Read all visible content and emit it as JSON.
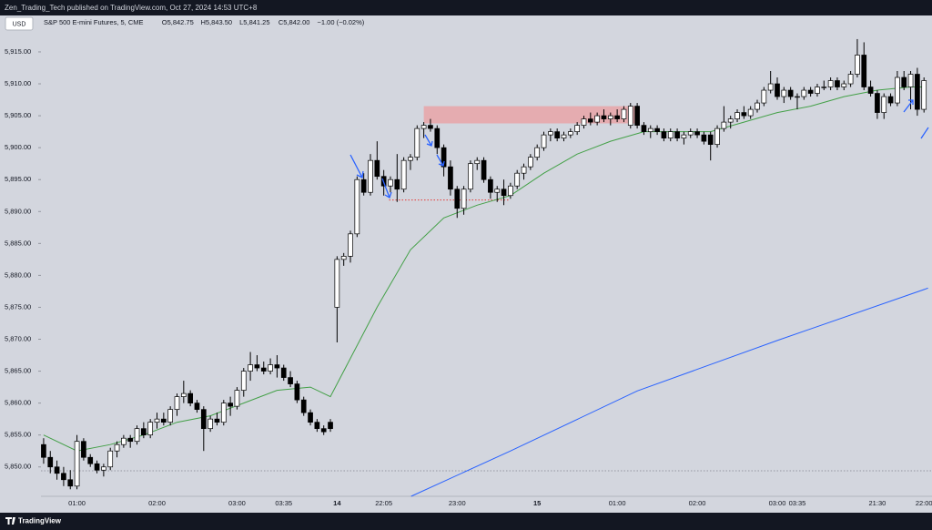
{
  "header": {
    "published": "Zen_Trading_Tech published on TradingView.com, Oct 27, 2024 14:53 UTC+8",
    "currency": "USD",
    "footer": "TradingView"
  },
  "chart_data": {
    "type": "candlestick",
    "title": "S&P 500 E-mini Futures, 5, CME",
    "legend_values": [
      "O5,842.75",
      "H5,843.50",
      "L5,841.25",
      "C5,842.00",
      "−1.00 (−0.02%)"
    ],
    "up_color": "#ffffff",
    "down_color": "#000000",
    "categories": [
      null,
      null,
      null,
      null,
      null,
      "01:00",
      null,
      null,
      null,
      null,
      null,
      null,
      null,
      null,
      null,
      null,
      null,
      "02:00",
      null,
      null,
      null,
      null,
      null,
      null,
      null,
      null,
      null,
      null,
      null,
      "03:00",
      null,
      null,
      null,
      null,
      null,
      null,
      "03:35",
      null,
      null,
      null,
      null,
      null,
      null,
      null,
      "14",
      null,
      null,
      null,
      null,
      null,
      null,
      "22:05",
      null,
      null,
      null,
      null,
      null,
      null,
      null,
      null,
      null,
      null,
      "23:00",
      null,
      null,
      null,
      null,
      null,
      null,
      null,
      null,
      null,
      null,
      null,
      "15",
      null,
      null,
      null,
      null,
      null,
      null,
      null,
      null,
      null,
      null,
      null,
      "01:00",
      null,
      null,
      null,
      null,
      null,
      null,
      null,
      null,
      null,
      null,
      null,
      "02:00",
      null,
      null,
      null,
      null,
      null,
      null,
      null,
      null,
      null,
      null,
      null,
      "03:00",
      null,
      null,
      "03:35",
      null,
      null,
      null,
      null,
      null,
      null,
      null,
      null,
      null,
      null,
      null,
      "21:30",
      null,
      null,
      null,
      null,
      null,
      null,
      "22:00"
    ],
    "open": [
      5853.5,
      5851.5,
      5850,
      5849,
      5848,
      5847,
      5854,
      5851.5,
      5850.5,
      5849.5,
      5850,
      5852.5,
      5853.5,
      5854.5,
      5854,
      5856,
      5855,
      5857,
      5857.5,
      5857,
      5859,
      5861,
      5861.5,
      5860,
      5859,
      5856,
      5857.5,
      5857,
      5860,
      5859.5,
      5862,
      5865,
      5866,
      5865.5,
      5865,
      5866,
      5865.5,
      5864,
      5863,
      5860.5,
      5858.5,
      5857,
      5856,
      5857,
      5875,
      5882.5,
      5883,
      5886.5,
      5895,
      5893,
      5898,
      5895.5,
      5894,
      5895,
      5893.5,
      5898,
      5898.5,
      5903,
      5903.5,
      5903,
      5900,
      5897,
      5893.5,
      5890.5,
      5893.5,
      5897.5,
      5898,
      5895,
      5893,
      5893.5,
      5892.5,
      5894,
      5896,
      5897,
      5898.5,
      5900,
      5902,
      5902.5,
      5901.5,
      5902,
      5902.5,
      5903.5,
      5904.5,
      5904,
      5905,
      5904.5,
      5905,
      5904.5,
      5903.5,
      5906.5,
      5903.5,
      5902.5,
      5903,
      5902.5,
      5901.5,
      5902.5,
      5901.5,
      5902,
      5902.5,
      5902,
      5902,
      5900.5,
      5903,
      5904,
      5904.5,
      5905.5,
      5905,
      5906,
      5907,
      5909,
      5910,
      5908,
      5909,
      5908,
      5908,
      5909,
      5908.5,
      5909.5,
      5909.5,
      5910.5,
      5909.5,
      5910,
      5911.5,
      5914.5,
      5909.5,
      5908.5,
      5905.5,
      5908,
      5907,
      5911,
      5909.5,
      5911.5,
      5906
    ],
    "high": [
      5854.5,
      5852.5,
      5851,
      5850,
      5849.5,
      5855,
      5854.5,
      5852,
      5851,
      5850.5,
      5853,
      5854,
      5855,
      5855,
      5856.5,
      5857,
      5857.5,
      5858.5,
      5858.5,
      5859.5,
      5861.5,
      5863.5,
      5862,
      5860.5,
      5859.5,
      5858,
      5858.5,
      5860.5,
      5861,
      5862.5,
      5865.5,
      5868,
      5867.5,
      5866.5,
      5867,
      5867.5,
      5866,
      5865,
      5863.5,
      5861,
      5859,
      5857.5,
      5856.5,
      5857.5,
      5883,
      5883.5,
      5887,
      5895.5,
      5896,
      5899,
      5901,
      5896.5,
      5895.5,
      5899,
      5898.5,
      5899,
      5903.5,
      5904,
      5904.5,
      5903.5,
      5900.5,
      5898,
      5894,
      5894,
      5898,
      5898.5,
      5898.5,
      5895.5,
      5894,
      5895,
      5894.5,
      5896.5,
      5897.5,
      5899,
      5900.5,
      5902.5,
      5903,
      5903,
      5902.5,
      5903,
      5904,
      5905,
      5905.5,
      5905.5,
      5906,
      5905.5,
      5906,
      5906.5,
      5907,
      5907,
      5904,
      5903.5,
      5903.5,
      5903,
      5903,
      5903,
      5902.5,
      5903,
      5903,
      5902.5,
      5902.5,
      5903.5,
      5906.5,
      5905,
      5906,
      5906.5,
      5906.5,
      5907.5,
      5909.5,
      5912,
      5911,
      5909.5,
      5909.5,
      5908.5,
      5909.5,
      5909.5,
      5910,
      5910.5,
      5911,
      5911,
      5910.5,
      5912,
      5917,
      5916.5,
      5910.5,
      5909,
      5908.5,
      5908.5,
      5912,
      5912,
      5912,
      5912.5,
      5911
    ],
    "low": [
      5850.5,
      5849,
      5848,
      5847,
      5846.5,
      5846.5,
      5851,
      5850,
      5849,
      5848.5,
      5849.5,
      5851.5,
      5853,
      5853,
      5853.5,
      5854.5,
      5854.5,
      5856,
      5856.5,
      5856.5,
      5858,
      5860,
      5859.5,
      5858.5,
      5852.5,
      5855.5,
      5856.5,
      5856.5,
      5858,
      5859,
      5861,
      5863.5,
      5865,
      5864.5,
      5864.5,
      5864,
      5863.5,
      5862.5,
      5860,
      5858,
      5856.5,
      5855.5,
      5855,
      5855.5,
      5869.5,
      5881.5,
      5882,
      5886,
      5892.5,
      5892.5,
      5895,
      5892.5,
      5893,
      5891.5,
      5893,
      5896.5,
      5898,
      5901.5,
      5902.5,
      5899,
      5895.5,
      5892.5,
      5889,
      5889.5,
      5893,
      5896.5,
      5894.5,
      5892,
      5891.5,
      5891,
      5892,
      5893.5,
      5895,
      5896.5,
      5898,
      5899.5,
      5901,
      5901,
      5901,
      5901.5,
      5902,
      5903,
      5903.5,
      5903.5,
      5904,
      5903.5,
      5904,
      5904,
      5903,
      5903,
      5902,
      5901.5,
      5902,
      5901,
      5901,
      5901,
      5900.5,
      5901.5,
      5901.5,
      5900.5,
      5898,
      5900,
      5902.5,
      5903,
      5904,
      5904.5,
      5904.5,
      5905.5,
      5906.5,
      5908.5,
      5907.5,
      5907,
      5907.5,
      5906,
      5907.5,
      5908,
      5908,
      5909,
      5909,
      5909,
      5909,
      5909.5,
      5911,
      5909,
      5908,
      5904.5,
      5904.5,
      5906.5,
      5906.5,
      5909,
      5906,
      5905,
      5905.5
    ],
    "close": [
      5851.5,
      5850,
      5849,
      5848,
      5847,
      5854,
      5851.5,
      5850.5,
      5849.5,
      5850,
      5852.5,
      5853.5,
      5854.5,
      5854,
      5856,
      5855,
      5857,
      5857.5,
      5857,
      5859,
      5861,
      5861.5,
      5860,
      5859,
      5856,
      5857.5,
      5857,
      5860,
      5859.5,
      5862,
      5865,
      5866,
      5865.5,
      5865,
      5866,
      5865.5,
      5864,
      5863,
      5860.5,
      5858.5,
      5857,
      5856,
      5855.5,
      5856,
      5882.5,
      5883,
      5886.5,
      5895,
      5893,
      5898,
      5895.5,
      5894,
      5895,
      5893.5,
      5898,
      5898.5,
      5903,
      5903.5,
      5903,
      5900,
      5897,
      5893.5,
      5890.5,
      5893.5,
      5897.5,
      5898,
      5895,
      5893,
      5893.5,
      5892.5,
      5894,
      5896,
      5897,
      5898.5,
      5900,
      5902,
      5902.5,
      5901.5,
      5902,
      5902.5,
      5903.5,
      5904.5,
      5904,
      5905,
      5904.5,
      5905,
      5904.5,
      5906,
      5906.5,
      5903.5,
      5902.5,
      5903,
      5902.5,
      5901.5,
      5902.5,
      5901.5,
      5902,
      5902.5,
      5902,
      5901,
      5900.5,
      5903,
      5904,
      5904.5,
      5905.5,
      5905,
      5906,
      5907,
      5909,
      5910,
      5908,
      5909,
      5908,
      5908,
      5909,
      5908.5,
      5909.5,
      5909.5,
      5910.5,
      5909.5,
      5910,
      5911.5,
      5914.5,
      5909.5,
      5908.5,
      5905.5,
      5908,
      5907,
      5911,
      5909.5,
      5911.5,
      5906,
      5910.5
    ],
    "lines": [
      {
        "color": "#43a047",
        "x": [
          0,
          5,
          10,
          15,
          20,
          25,
          30,
          35,
          40,
          43,
          46,
          50,
          55,
          60,
          65,
          70,
          75,
          80,
          85,
          90,
          95,
          100,
          105,
          110,
          115,
          120,
          125,
          130,
          132
        ],
        "values": [
          5855,
          5852.5,
          5853.5,
          5855,
          5857,
          5858,
          5860,
          5862,
          5862.5,
          5861,
          5867,
          5875,
          5884,
          5889,
          5891,
          5892.5,
          5896,
          5899,
          5901,
          5902.5,
          5902.5,
          5902.5,
          5904,
          5905.5,
          5906.5,
          5908,
          5909,
          5909.5,
          5909.5
        ]
      },
      {
        "color": "#2962ff",
        "x": [
          55.1,
          70,
          89,
          110,
          132.6
        ],
        "values": [
          5845.4,
          5852.5,
          5861.9,
          5869.8,
          5878
        ]
      }
    ],
    "zones": [
      {
        "color": "#e8a4a8",
        "x": [
          57,
          88.7
        ],
        "y": [
          5903.8,
          5906.5
        ]
      }
    ],
    "levels": [
      {
        "color": "#e53935",
        "value": 5891.8,
        "x": [
          51.8,
          69.8
        ]
      },
      {
        "color": "#9598a1",
        "value": 5849.4,
        "x": [
          -0.4,
          133.2
        ]
      }
    ],
    "xlim": [
      -0.4,
      133.2
    ],
    "ylim": [
      5845.4,
      5920.7
    ],
    "yticks": [
      {
        "value": 5850,
        "label": "5,850.00"
      },
      {
        "value": 5855,
        "label": "5,855.00"
      },
      {
        "value": 5860,
        "label": "5,860.00"
      },
      {
        "value": 5865,
        "label": "5,865.00"
      },
      {
        "value": 5870,
        "label": "5,870.00"
      },
      {
        "value": 5875,
        "label": "5,875.00"
      },
      {
        "value": 5880,
        "label": "5,880.00"
      },
      {
        "value": 5885,
        "label": "5,885.00"
      },
      {
        "value": 5890,
        "label": "5,890.00"
      },
      {
        "value": 5895,
        "label": "5,895.00"
      },
      {
        "value": 5900,
        "label": "5,900.00"
      },
      {
        "value": 5905,
        "label": "5,905.00"
      },
      {
        "value": 5910,
        "label": "5,910.00"
      },
      {
        "value": 5915,
        "label": "5,915.00"
      }
    ]
  }
}
